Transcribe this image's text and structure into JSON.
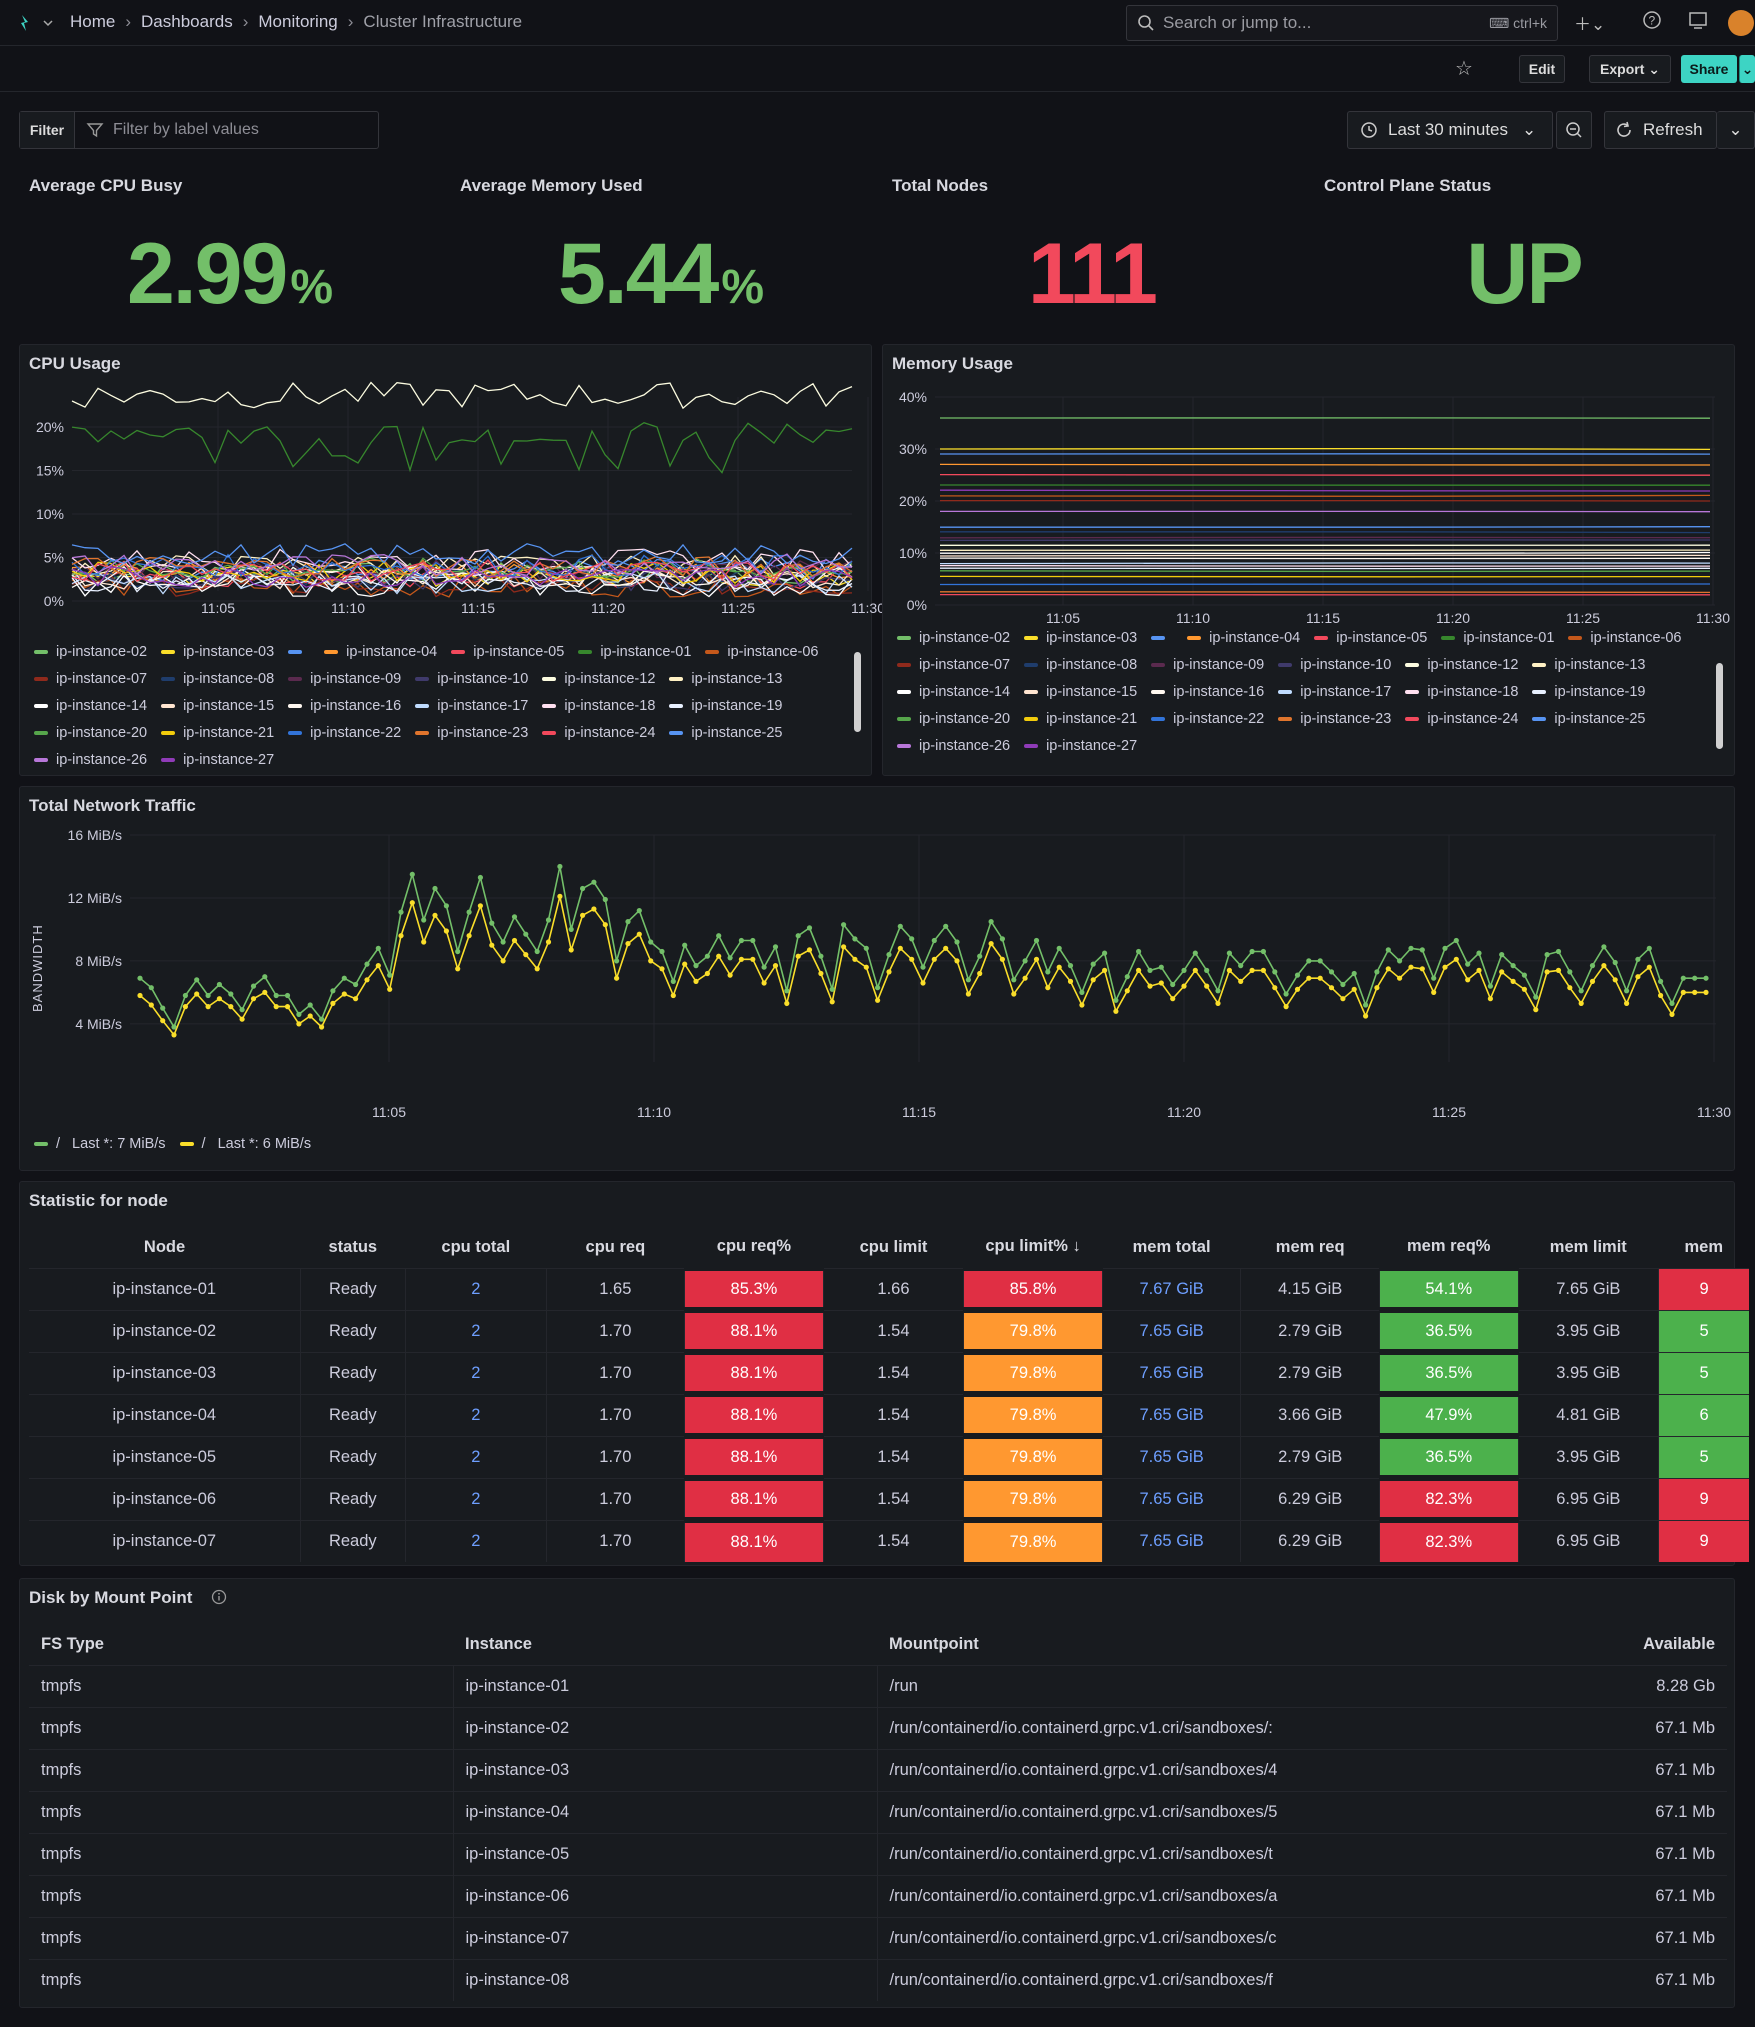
{
  "topbar": {
    "crumbs": [
      "Home",
      "Dashboards",
      "Monitoring",
      "Cluster Infrastructure"
    ],
    "search_placeholder": "Search or jump to...",
    "search_kbd": "ctrl+k"
  },
  "toolbar": {
    "edit": "Edit",
    "export": "Export",
    "share": "Share"
  },
  "filter": {
    "label": "Filter",
    "placeholder": "Filter by label values"
  },
  "timepicker": {
    "range": "Last 30 minutes",
    "refresh": "Refresh"
  },
  "stats": [
    {
      "title": "Average CPU Busy",
      "value": "2.99",
      "unit": "%",
      "color": "#73bf69"
    },
    {
      "title": "Average Memory Used",
      "value": "5.44",
      "unit": "%",
      "color": "#73bf69"
    },
    {
      "title": "Total Nodes",
      "value": "111",
      "unit": "",
      "color": "#f2495c"
    },
    {
      "title": "Control Plane Status",
      "value": "UP",
      "unit": "",
      "color": "#73bf69"
    }
  ],
  "cpu_panel": {
    "title": "CPU Usage",
    "yticks": [
      "20%",
      "15%",
      "10%",
      "5%",
      "0%"
    ],
    "xticks": [
      "11:05",
      "11:10",
      "11:15",
      "11:20",
      "11:25",
      "11:30"
    ],
    "legend": [
      {
        "name": "ip-instance-02",
        "color": "#73bf69"
      },
      {
        "name": "ip-instance-03",
        "color": "#fade2a"
      },
      {
        "name": "",
        "color": "#5794f2"
      },
      {
        "name": "ip-instance-04",
        "color": "#ff9830"
      },
      {
        "name": "ip-instance-05",
        "color": "#f2495c"
      },
      {
        "name": "ip-instance-01",
        "color": "#37872d"
      },
      {
        "name": "ip-instance-06",
        "color": "#c4581b"
      },
      {
        "name": "ip-instance-07",
        "color": "#8f2a1c"
      },
      {
        "name": "ip-instance-08",
        "color": "#1f3d6c"
      },
      {
        "name": "ip-instance-09",
        "color": "#5a2a4e"
      },
      {
        "name": "ip-instance-10",
        "color": "#3f3a6b"
      },
      {
        "name": "ip-instance-12",
        "color": "#fcfce0"
      },
      {
        "name": "ip-instance-13",
        "color": "#fff1c4"
      },
      {
        "name": "ip-instance-14",
        "color": "#ffffff"
      },
      {
        "name": "ip-instance-15",
        "color": "#ffe5d0"
      },
      {
        "name": "ip-instance-16",
        "color": "#fff8f0"
      },
      {
        "name": "ip-instance-17",
        "color": "#c0dcff"
      },
      {
        "name": "ip-instance-18",
        "color": "#ffe0f0"
      },
      {
        "name": "ip-instance-19",
        "color": "#e8f0ff"
      },
      {
        "name": "ip-instance-20",
        "color": "#56a64b"
      },
      {
        "name": "ip-instance-21",
        "color": "#f2cc0c"
      },
      {
        "name": "ip-instance-22",
        "color": "#3274d9"
      },
      {
        "name": "ip-instance-23",
        "color": "#e0752d"
      },
      {
        "name": "ip-instance-24",
        "color": "#f2495c"
      },
      {
        "name": "ip-instance-25",
        "color": "#5794f2"
      },
      {
        "name": "ip-instance-26",
        "color": "#b877d9"
      },
      {
        "name": "ip-instance-27",
        "color": "#8f3bb8"
      }
    ]
  },
  "mem_panel": {
    "title": "Memory Usage",
    "yticks": [
      "40%",
      "30%",
      "20%",
      "10%",
      "0%"
    ],
    "xticks": [
      "11:05",
      "11:10",
      "11:15",
      "11:20",
      "11:25",
      "11:30"
    ],
    "legend": [
      {
        "name": "ip-instance-02",
        "color": "#73bf69"
      },
      {
        "name": "ip-instance-03",
        "color": "#fade2a"
      },
      {
        "name": "",
        "color": "#5794f2"
      },
      {
        "name": "ip-instance-04",
        "color": "#ff9830"
      },
      {
        "name": "ip-instance-05",
        "color": "#f2495c"
      },
      {
        "name": "ip-instance-01",
        "color": "#37872d"
      },
      {
        "name": "ip-instance-06",
        "color": "#c4581b"
      },
      {
        "name": "ip-instance-07",
        "color": "#8f2a1c"
      },
      {
        "name": "ip-instance-08",
        "color": "#1f3d6c"
      },
      {
        "name": "ip-instance-09",
        "color": "#5a2a4e"
      },
      {
        "name": "ip-instance-10",
        "color": "#3f3a6b"
      },
      {
        "name": "ip-instance-12",
        "color": "#fcfce0"
      },
      {
        "name": "ip-instance-13",
        "color": "#fff1c4"
      },
      {
        "name": "ip-instance-14",
        "color": "#ffffff"
      },
      {
        "name": "ip-instance-15",
        "color": "#ffe5d0"
      },
      {
        "name": "ip-instance-16",
        "color": "#fff8f0"
      },
      {
        "name": "ip-instance-17",
        "color": "#c0dcff"
      },
      {
        "name": "ip-instance-18",
        "color": "#ffe0f0"
      },
      {
        "name": "ip-instance-19",
        "color": "#e8f0ff"
      },
      {
        "name": "ip-instance-20",
        "color": "#56a64b"
      },
      {
        "name": "ip-instance-21",
        "color": "#f2cc0c"
      },
      {
        "name": "ip-instance-22",
        "color": "#3274d9"
      },
      {
        "name": "ip-instance-23",
        "color": "#e0752d"
      },
      {
        "name": "ip-instance-24",
        "color": "#f2495c"
      },
      {
        "name": "ip-instance-25",
        "color": "#5794f2"
      },
      {
        "name": "ip-instance-26",
        "color": "#b877d9"
      },
      {
        "name": "ip-instance-27",
        "color": "#8f3bb8"
      }
    ]
  },
  "net_panel": {
    "title": "Total Network Traffic",
    "ylabel": "BANDWIDTH",
    "legend": [
      {
        "name": "/",
        "stat": "Last *: 7 MiB/s",
        "color": "#73bf69"
      },
      {
        "name": "/",
        "stat": "Last *: 6 MiB/s",
        "color": "#fade2a"
      }
    ]
  },
  "chart_data": [
    {
      "type": "line",
      "title": "Total Network Traffic",
      "ylabel": "BANDWIDTH",
      "unit": "MiB/s",
      "ylim": [
        2,
        16
      ],
      "yticks": [
        "16 MiB/s",
        "12 MiB/s",
        "8 MiB/s",
        "4 MiB/s"
      ],
      "xticks": [
        "11:05",
        "11:10",
        "11:15",
        "11:20",
        "11:25",
        "11:30"
      ],
      "series": [
        {
          "name": "/",
          "color": "#73bf69",
          "values": [
            6.9,
            6.3,
            5.0,
            3.8,
            5.8,
            6.8,
            5.8,
            6.5,
            5.9,
            4.9,
            6.4,
            7.0,
            5.8,
            5.8,
            4.6,
            5.2,
            4.3,
            6.1,
            6.9,
            6.5,
            7.8,
            8.8,
            7.1,
            11.1,
            13.5,
            10.6,
            12.6,
            11.5,
            8.6,
            11.1,
            13.3,
            10.4,
            9.2,
            10.8,
            9.7,
            8.6,
            10.6,
            14.0,
            10.0,
            12.6,
            13.0,
            11.9,
            8.0,
            10.5,
            11.2,
            9.2,
            8.6,
            6.7,
            9.0,
            7.7,
            8.3,
            9.6,
            8.2,
            9.3,
            9.3,
            7.6,
            8.9,
            6.1,
            9.6,
            10.1,
            8.3,
            6.2,
            10.3,
            9.4,
            8.8,
            6.3,
            8.4,
            10.2,
            9.4,
            7.6,
            9.3,
            10.2,
            9.2,
            6.8,
            8.3,
            10.5,
            9.4,
            6.8,
            8.0,
            9.3,
            7.3,
            8.8,
            7.7,
            6.0,
            7.8,
            8.5,
            5.5,
            7.0,
            8.6,
            7.4,
            7.6,
            6.5,
            7.4,
            8.5,
            7.4,
            6.1,
            8.5,
            7.7,
            8.6,
            8.6,
            7.3,
            5.9,
            7.1,
            8.0,
            8.0,
            7.3,
            6.5,
            7.2,
            5.2,
            7.3,
            8.7,
            8.0,
            8.8,
            8.7,
            6.9,
            8.8,
            9.3,
            7.8,
            8.5,
            6.4,
            8.4,
            7.7,
            7.1,
            5.7,
            8.4,
            8.6,
            7.3,
            6.1,
            7.7,
            8.9,
            7.9,
            6.1,
            8.1,
            8.8,
            6.7,
            5.3,
            6.9,
            6.9,
            6.9
          ]
        },
        {
          "name": "/",
          "color": "#fade2a",
          "values": [
            5.8,
            5.2,
            4.2,
            3.3,
            5.1,
            5.9,
            5.1,
            5.6,
            5.1,
            4.3,
            5.6,
            6.0,
            5.1,
            5.1,
            4.0,
            4.5,
            3.8,
            5.3,
            5.9,
            5.6,
            6.8,
            7.7,
            6.2,
            9.6,
            11.7,
            9.2,
            10.9,
            9.9,
            7.5,
            9.6,
            11.5,
            9.0,
            8.0,
            9.3,
            8.4,
            7.5,
            9.2,
            12.1,
            8.7,
            10.9,
            11.3,
            10.3,
            6.9,
            9.1,
            9.7,
            8.0,
            7.5,
            5.8,
            7.8,
            6.7,
            7.2,
            8.3,
            7.1,
            8.1,
            8.1,
            6.6,
            7.7,
            5.3,
            8.3,
            8.7,
            7.2,
            5.4,
            8.9,
            8.1,
            7.6,
            5.5,
            7.3,
            8.8,
            8.1,
            6.6,
            8.1,
            8.8,
            8.0,
            5.9,
            7.2,
            9.1,
            8.1,
            5.9,
            6.9,
            8.1,
            6.3,
            7.6,
            6.7,
            5.2,
            6.8,
            7.4,
            4.8,
            6.1,
            7.4,
            6.4,
            6.6,
            5.6,
            6.4,
            7.4,
            6.4,
            5.3,
            7.4,
            6.7,
            7.4,
            7.4,
            6.3,
            5.1,
            6.2,
            6.9,
            6.9,
            6.3,
            5.6,
            6.2,
            4.5,
            6.3,
            7.5,
            6.9,
            7.6,
            7.5,
            6.0,
            7.6,
            8.1,
            6.8,
            7.4,
            5.6,
            7.3,
            6.7,
            6.2,
            4.9,
            7.3,
            7.4,
            6.3,
            5.3,
            6.7,
            7.7,
            6.8,
            5.3,
            7.0,
            7.6,
            5.8,
            4.6,
            6.0,
            6.0,
            6.0
          ]
        }
      ]
    }
  ],
  "node_table": {
    "title": "Statistic for node",
    "sort_icon": "arrow-down-icon",
    "columns": [
      "Node",
      "status",
      "cpu total",
      "cpu req",
      "cpu req%",
      "cpu limit",
      "cpu limit%",
      "mem total",
      "mem req",
      "mem req%",
      "mem limit",
      "mem"
    ],
    "rows": [
      [
        "ip-instance-01",
        "Ready",
        "2",
        "1.65",
        "85.3%",
        "1.66",
        "85.8%",
        "7.67 GiB",
        "4.15 GiB",
        "54.1%",
        "7.65 GiB",
        "9"
      ],
      [
        "ip-instance-02",
        "Ready",
        "2",
        "1.70",
        "88.1%",
        "1.54",
        "79.8%",
        "7.65 GiB",
        "2.79 GiB",
        "36.5%",
        "3.95 GiB",
        "5"
      ],
      [
        "ip-instance-03",
        "Ready",
        "2",
        "1.70",
        "88.1%",
        "1.54",
        "79.8%",
        "7.65 GiB",
        "2.79 GiB",
        "36.5%",
        "3.95 GiB",
        "5"
      ],
      [
        "ip-instance-04",
        "Ready",
        "2",
        "1.70",
        "88.1%",
        "1.54",
        "79.8%",
        "7.65 GiB",
        "3.66 GiB",
        "47.9%",
        "4.81 GiB",
        "6"
      ],
      [
        "ip-instance-05",
        "Ready",
        "2",
        "1.70",
        "88.1%",
        "1.54",
        "79.8%",
        "7.65 GiB",
        "2.79 GiB",
        "36.5%",
        "3.95 GiB",
        "5"
      ],
      [
        "ip-instance-06",
        "Ready",
        "2",
        "1.70",
        "88.1%",
        "1.54",
        "79.8%",
        "7.65 GiB",
        "6.29 GiB",
        "82.3%",
        "6.95 GiB",
        "9"
      ],
      [
        "ip-instance-07",
        "Ready",
        "2",
        "1.70",
        "88.1%",
        "1.54",
        "79.8%",
        "7.65 GiB",
        "6.29 GiB",
        "82.3%",
        "6.95 GiB",
        "9"
      ]
    ],
    "cell_colors": [
      [
        "red",
        "red",
        "grn",
        "red"
      ],
      [
        "red",
        "org",
        "grn",
        "grn"
      ],
      [
        "red",
        "org",
        "grn",
        "grn"
      ],
      [
        "red",
        "org",
        "grn",
        "grn"
      ],
      [
        "red",
        "org",
        "grn",
        "grn"
      ],
      [
        "red",
        "org",
        "red",
        "red"
      ],
      [
        "red",
        "org",
        "red",
        "red"
      ]
    ]
  },
  "disk_table": {
    "title": "Disk by Mount Point",
    "columns": [
      "FS Type",
      "Instance",
      "Mountpoint",
      "Available"
    ],
    "rows": [
      [
        "tmpfs",
        "ip-instance-01",
        "/run",
        "8.28 Gb"
      ],
      [
        "tmpfs",
        "ip-instance-02",
        "/run/containerd/io.containerd.grpc.v1.cri/sandboxes/:",
        "67.1 Mb"
      ],
      [
        "tmpfs",
        "ip-instance-03",
        "/run/containerd/io.containerd.grpc.v1.cri/sandboxes/4",
        "67.1 Mb"
      ],
      [
        "tmpfs",
        "ip-instance-04",
        "/run/containerd/io.containerd.grpc.v1.cri/sandboxes/5",
        "67.1 Mb"
      ],
      [
        "tmpfs",
        "ip-instance-05",
        "/run/containerd/io.containerd.grpc.v1.cri/sandboxes/t",
        "67.1 Mb"
      ],
      [
        "tmpfs",
        "ip-instance-06",
        "/run/containerd/io.containerd.grpc.v1.cri/sandboxes/a",
        "67.1 Mb"
      ],
      [
        "tmpfs",
        "ip-instance-07",
        "/run/containerd/io.containerd.grpc.v1.cri/sandboxes/c",
        "67.1 Mb"
      ],
      [
        "tmpfs",
        "ip-instance-08",
        "/run/containerd/io.containerd.grpc.v1.cri/sandboxes/f",
        "67.1 Mb"
      ]
    ]
  }
}
